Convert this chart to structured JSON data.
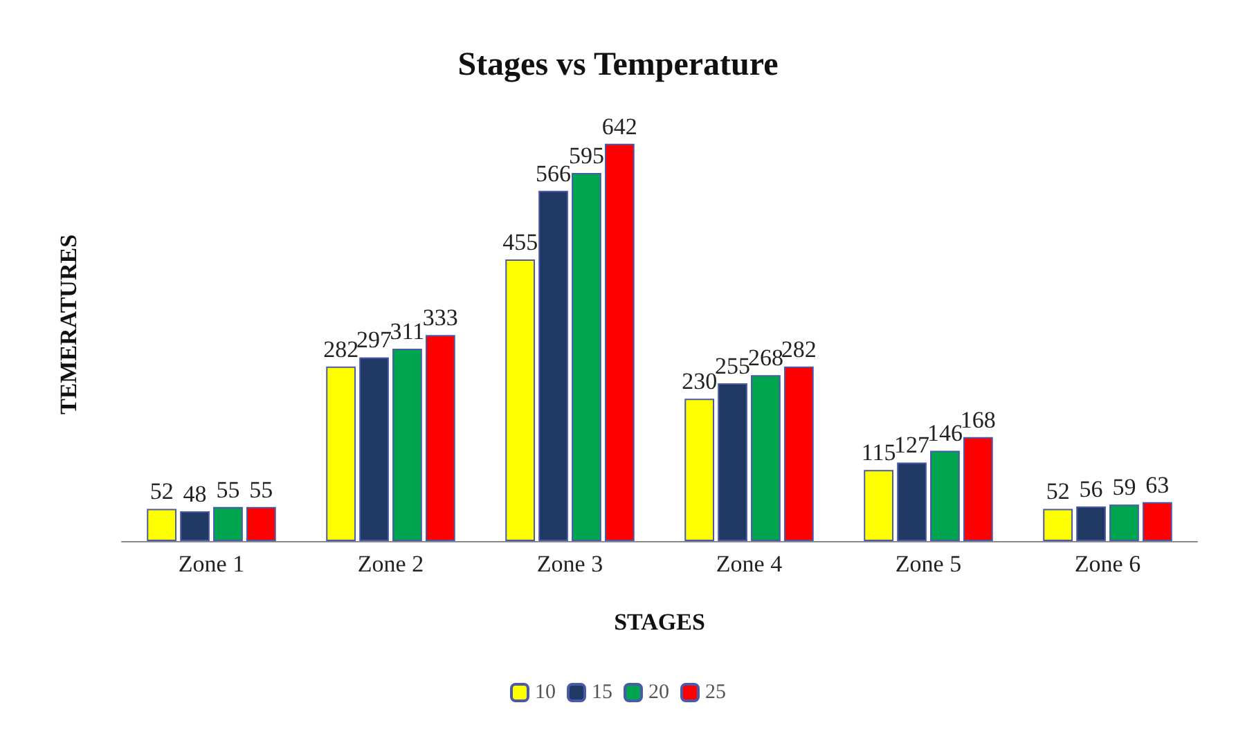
{
  "chart_data": {
    "type": "bar",
    "title": "Stages vs Temperature",
    "xlabel": "STAGES",
    "ylabel": "TEMERATURES",
    "categories": [
      "Zone 1",
      "Zone 2",
      "Zone 3",
      "Zone 4",
      "Zone 5",
      "Zone 6"
    ],
    "series": [
      {
        "name": "10",
        "color": "#ffff00",
        "values": [
          52,
          282,
          455,
          230,
          115,
          52
        ]
      },
      {
        "name": "15",
        "color": "#1f3864",
        "values": [
          48,
          297,
          566,
          255,
          127,
          56
        ]
      },
      {
        "name": "20",
        "color": "#00a550",
        "values": [
          55,
          311,
          595,
          268,
          146,
          59
        ]
      },
      {
        "name": "25",
        "color": "#ff0000",
        "values": [
          55,
          333,
          642,
          282,
          168,
          63
        ]
      }
    ],
    "data_labels": true,
    "legend": "bottom",
    "grid": false
  }
}
